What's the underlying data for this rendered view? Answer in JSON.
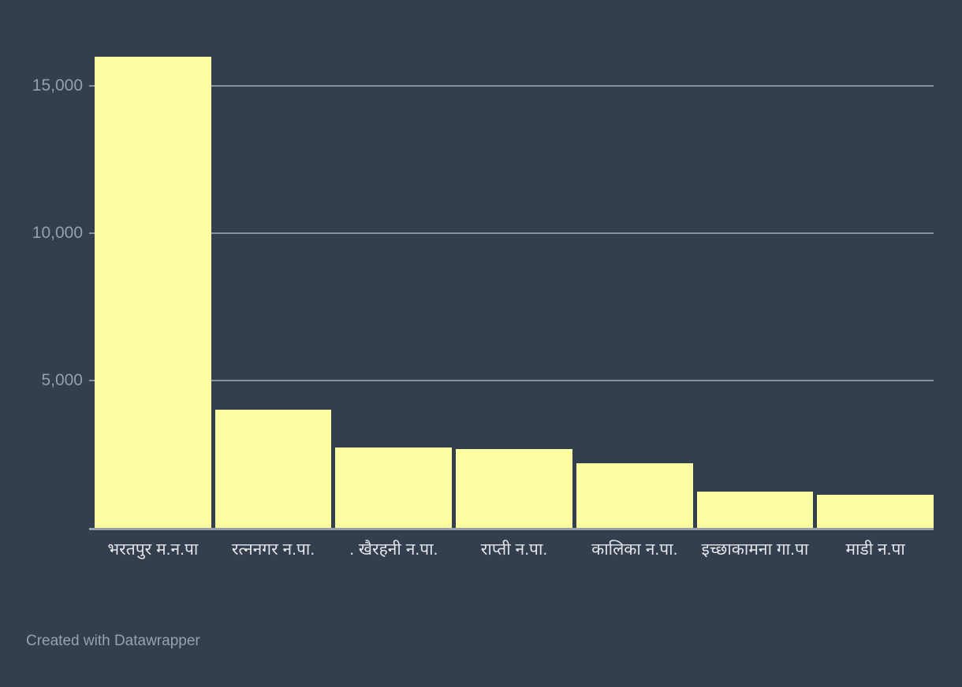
{
  "chart": {
    "footer": "Created with Datawrapper",
    "colors": {
      "background": "#333e4e",
      "bar": "#fdfda2",
      "gridline": "#8b9099",
      "baseline": "#9aa0a6",
      "y_label": "#989fa9",
      "x_label": "#e3e6ea",
      "footer_text": "#99a1ab"
    }
  },
  "chart_data": {
    "type": "bar",
    "title": "",
    "xlabel": "",
    "ylabel": "",
    "categories": [
      "भरतपुर म.न.पा",
      "रत्ननगर न.पा.",
      ". खैरहनी न.पा.",
      "राप्ती न.पा.",
      "कालिका न.पा.",
      "इच्छाकामना गा.पा",
      "माडी न.पा"
    ],
    "values": [
      16000,
      4000,
      2730,
      2670,
      2190,
      1230,
      1120
    ],
    "ylim": [
      0,
      16050
    ],
    "yticks": [
      {
        "value": 15000,
        "label": "15,000"
      },
      {
        "value": 10000,
        "label": "10,000"
      },
      {
        "value": 5000,
        "label": "5,000"
      }
    ],
    "grid": true,
    "legend": false,
    "bar_color": "#fdfda2"
  }
}
